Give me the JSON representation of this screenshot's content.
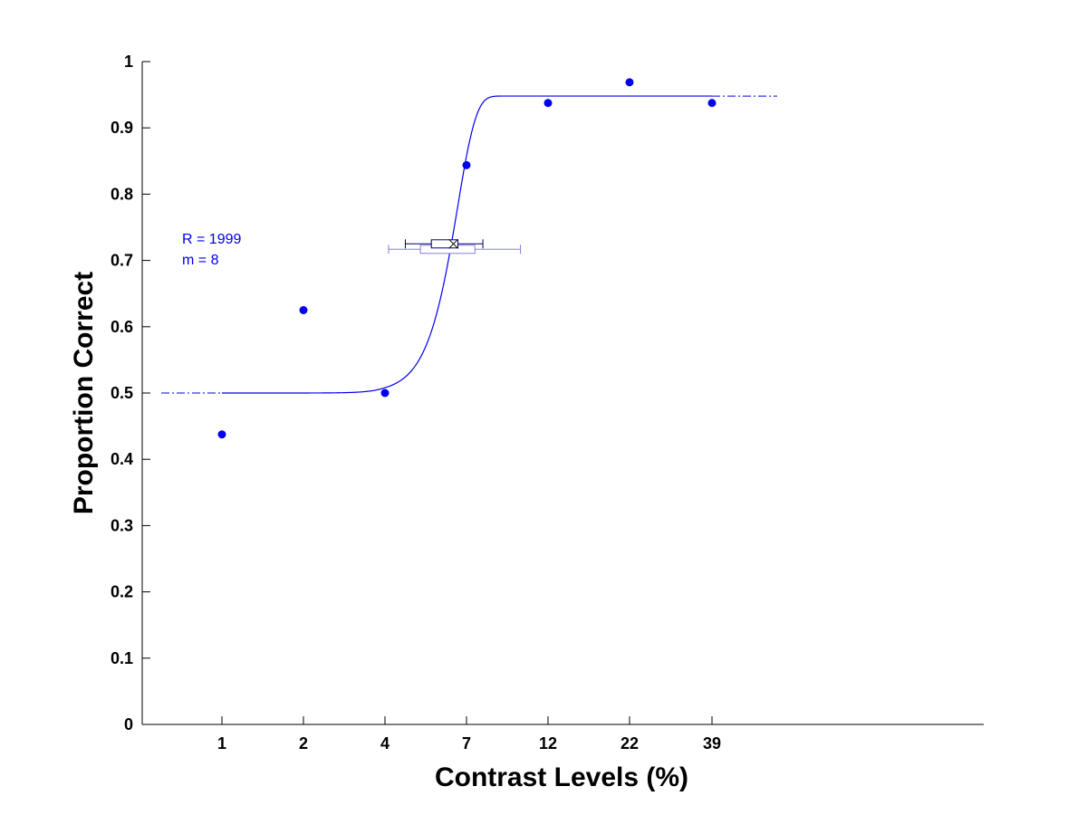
{
  "colors": {
    "series": "#0000ee",
    "ci_outer": "#8080dd",
    "axes": "#000000",
    "background": "#ffffff"
  },
  "chart_data": {
    "type": "scatter",
    "xlabel": "Contrast Levels (%)",
    "ylabel": "Proportion Correct",
    "x_scale": "ordinal-log",
    "x_ticks": [
      "1",
      "2",
      "4",
      "7",
      "12",
      "22",
      "39"
    ],
    "ylim": [
      0,
      1
    ],
    "y_ticks": [
      "0",
      "0.1",
      "0.2",
      "0.3",
      "0.4",
      "0.5",
      "0.6",
      "0.7",
      "0.8",
      "0.9",
      "1"
    ],
    "grid": false,
    "series": [
      {
        "type": "scatter",
        "x": [
          "1",
          "2",
          "4",
          "7",
          "12",
          "22",
          "39"
        ],
        "y": [
          0.4375,
          0.625,
          0.5,
          0.84375,
          0.9375,
          0.96875,
          0.9375
        ]
      },
      {
        "type": "line",
        "function": "weibull",
        "guess_rate": 0.5,
        "upper_asymptote": 0.948,
        "threshold_contrast": 6.6,
        "slope": 8
      }
    ],
    "threshold_estimate": {
      "x_contrast": 6.4,
      "y": 0.725,
      "inner_interval": [
        4.6,
        7.8
      ],
      "inner_box": [
        5.5,
        6.6
      ],
      "outer_interval": [
        4.1,
        10.0
      ],
      "outer_box": [
        5.1,
        7.4
      ]
    },
    "annotations": [
      "R = 1999",
      "m = 8"
    ]
  }
}
